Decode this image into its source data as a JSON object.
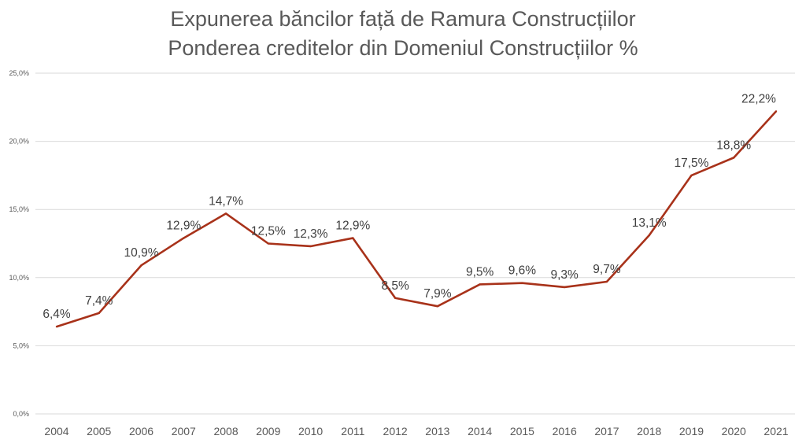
{
  "chart_data": {
    "type": "line",
    "title": [
      "Expunerea băncilor față de Ramura Construcțiilor",
      "Ponderea creditelor din Domeniul Construcțiilor %"
    ],
    "xlabel": "",
    "ylabel": "",
    "categories": [
      "2004",
      "2005",
      "2006",
      "2007",
      "2008",
      "2009",
      "2010",
      "2011",
      "2012",
      "2013",
      "2014",
      "2015",
      "2016",
      "2017",
      "2018",
      "2019",
      "2020",
      "2021"
    ],
    "series": [
      {
        "name": "Ponderea creditelor din Domeniul Construcțiilor",
        "values": [
          6.4,
          7.4,
          10.9,
          12.9,
          14.7,
          12.5,
          12.3,
          12.9,
          8.5,
          7.9,
          9.5,
          9.6,
          9.3,
          9.7,
          13.1,
          17.5,
          18.8,
          22.2
        ],
        "labels": [
          "6,4%",
          "7,4%",
          "10,9%",
          "12,9%",
          "14,7%",
          "12,5%",
          "12,3%",
          "12,9%",
          "8,5%",
          "7,9%",
          "9,5%",
          "9,6%",
          "9,3%",
          "9,7%",
          "13,1%",
          "17,5%",
          "18,8%",
          "22,2%"
        ],
        "color": "#A8321A"
      }
    ],
    "ylim": [
      0,
      25
    ],
    "yticks": [
      0,
      5,
      10,
      15,
      20,
      25
    ],
    "ytick_labels": [
      "0,0%",
      "5,0%",
      "10,0%",
      "15,0%",
      "20,0%",
      "25,0%"
    ],
    "grid": true,
    "legend": "none"
  }
}
